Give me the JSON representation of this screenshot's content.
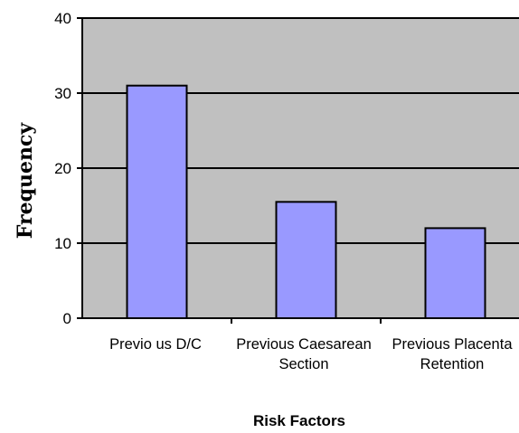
{
  "chart_data": {
    "type": "bar",
    "categories": [
      [
        "Previo us D/C"
      ],
      [
        "Previous Caesarean",
        "Section"
      ],
      [
        "Previous Placenta",
        "Retention"
      ]
    ],
    "values": [
      31,
      15.5,
      12
    ],
    "xlabel": "Risk Factors",
    "ylabel": "Frequency",
    "ylim": [
      0,
      40
    ],
    "yticks": [
      0,
      10,
      20,
      30,
      40
    ],
    "grid": true,
    "colors": {
      "bar_fill": "#9999ff",
      "bar_stroke": "#000000",
      "plot_background": "#c0c0c0",
      "gridline": "#000000"
    }
  }
}
